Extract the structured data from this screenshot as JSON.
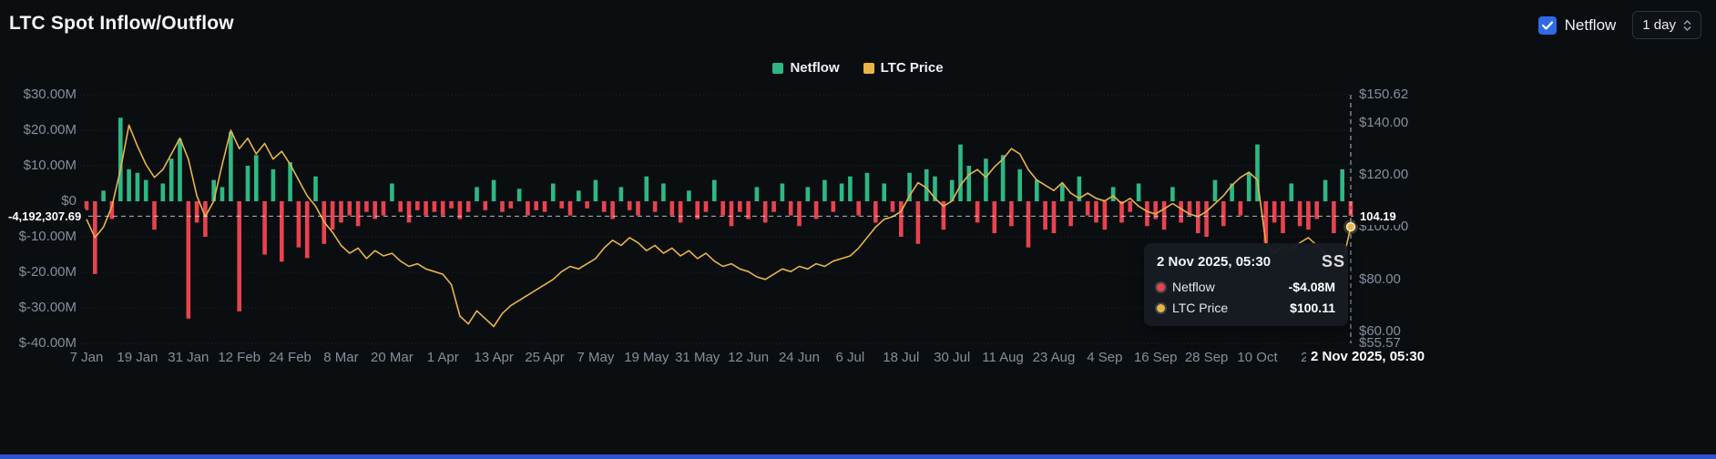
{
  "header": {
    "title": "LTC Spot Inflow/Outflow",
    "controls": {
      "netflow_label": "Netflow",
      "checkbox_checked": true,
      "checkbox_color": "#2f6be4",
      "interval_value": "1 day"
    }
  },
  "legend": {
    "items": [
      {
        "label": "Netflow",
        "color": "#2eb883"
      },
      {
        "label": "LTC Price",
        "color": "#e8b44a"
      }
    ]
  },
  "chart_data": {
    "type": "combo",
    "title": "LTC Spot Inflow/Outflow",
    "grid": "horizontal-dotted",
    "x_ticks": [
      "7 Jan",
      "19 Jan",
      "31 Jan",
      "12 Feb",
      "24 Feb",
      "8 Mar",
      "20 Mar",
      "1 Apr",
      "13 Apr",
      "25 Apr",
      "7 May",
      "19 May",
      "31 May",
      "12 Jun",
      "24 Jun",
      "6 Jul",
      "18 Jul",
      "30 Jul",
      "11 Aug",
      "23 Aug",
      "4 Sep",
      "16 Sep",
      "28 Sep",
      "10 Oct",
      "22"
    ],
    "points_per_tick": 6,
    "y_left": {
      "unit": "$M",
      "range": [
        -40,
        30
      ],
      "tick_labels": [
        "$30.00M",
        "$20.00M",
        "$10.00M",
        "$0",
        "$-10.00M",
        "$-20.00M",
        "$-30.00M",
        "$-40.00M"
      ],
      "tick_values": [
        30,
        20,
        10,
        0,
        -10,
        -20,
        -30,
        -40
      ]
    },
    "y_right": {
      "unit": "$",
      "range": [
        55.57,
        150.62
      ],
      "tick_labels": [
        "$150.62",
        "$140.00",
        "$120.00",
        "$100.00",
        "$80.00",
        "$60.00",
        "$55.57"
      ],
      "tick_values": [
        150.62,
        140,
        120,
        100,
        80,
        60,
        55.57
      ]
    },
    "series": [
      {
        "name": "Netflow",
        "type": "bar",
        "axis": "left",
        "color_positive": "#2eb883",
        "color_negative": "#e8434f",
        "values": [
          -2.5,
          -20.5,
          3,
          -5,
          23.5,
          9,
          8,
          6,
          -8,
          5,
          12,
          17.5,
          -33,
          -6,
          -10,
          6,
          4,
          19.5,
          -31,
          10,
          13,
          -15,
          9,
          -17,
          11,
          -13,
          -16,
          7,
          -12,
          -8,
          -6,
          -4,
          -7,
          -3,
          -5,
          -4,
          5,
          -3,
          -6,
          -2.5,
          -4,
          -3,
          -4,
          -2,
          -5,
          -3,
          4,
          -2.5,
          6,
          -3,
          -2,
          3.5,
          -4,
          -2.5,
          -3,
          5,
          -2,
          -4,
          3,
          -2,
          6,
          -3,
          -5,
          4,
          -2.5,
          -4,
          7,
          -3,
          5,
          -4,
          -6,
          3,
          -5,
          -3,
          6,
          -4,
          -7,
          -3,
          -5,
          4,
          -6,
          -3,
          5,
          -4,
          -7,
          4,
          -5,
          6,
          -3,
          5,
          7,
          -4,
          8,
          -6,
          5,
          -3,
          -10,
          8,
          -12,
          9,
          7,
          -8,
          6,
          16,
          10,
          -6,
          12,
          -9,
          13,
          -7,
          9,
          -13,
          6,
          -8,
          -9,
          5,
          -7,
          7,
          -4,
          -6,
          -8,
          4,
          -6,
          -3,
          5,
          -7,
          -5,
          -8,
          4,
          -6,
          -4,
          -9,
          -10,
          6,
          -7,
          5,
          -4,
          8,
          16,
          -12,
          -6,
          -9,
          5,
          -7,
          -8,
          -5,
          6,
          -9,
          9,
          -4.08
        ]
      },
      {
        "name": "LTC Price",
        "type": "line",
        "axis": "right",
        "color": "#e8b44a",
        "values": [
          103,
          96,
          100,
          108,
          122,
          139,
          131,
          124,
          119,
          122,
          128,
          134,
          126,
          112,
          104,
          110,
          124,
          137,
          130,
          134,
          128,
          132,
          126,
          129,
          124,
          118,
          112,
          108,
          102,
          98,
          93,
          90,
          92,
          88,
          91,
          89,
          90,
          87,
          85,
          86,
          84,
          83,
          82,
          78,
          66,
          63,
          68,
          65,
          62,
          67,
          70,
          72,
          74,
          76,
          78,
          80,
          83,
          85,
          84,
          86,
          88,
          92,
          95,
          93,
          96,
          94,
          91,
          93,
          90,
          92,
          89,
          91,
          88,
          90,
          87,
          85,
          86,
          84,
          83,
          81,
          80,
          82,
          84,
          83,
          85,
          84,
          86,
          85,
          87,
          88,
          89,
          92,
          96,
          100,
          103,
          104,
          106,
          112,
          117,
          115,
          111,
          108,
          110,
          116,
          120,
          122,
          119,
          123,
          126,
          130,
          128,
          122,
          118,
          116,
          114,
          117,
          113,
          111,
          113,
          111,
          110,
          112,
          109,
          111,
          108,
          106,
          105,
          107,
          109,
          107,
          105,
          104,
          106,
          109,
          112,
          116,
          119,
          121,
          118,
          94,
          90,
          93,
          91,
          94,
          96,
          93,
          90,
          88,
          86,
          100.11
        ]
      }
    ]
  },
  "crosshair": {
    "netflow_axis_label": "-4,192,307.69",
    "price_axis_label": "104.19",
    "date_label": "2 Nov 2025, 05:30",
    "netflow_value_m": -4.1923,
    "price_value": 104.19,
    "marker_price": 100.11
  },
  "tooltip": {
    "title": "2 Nov 2025, 05:30",
    "rows": [
      {
        "name": "Netflow",
        "value": "-$4.08M",
        "color": "#e8434f"
      },
      {
        "name": "LTC Price",
        "value": "$100.11",
        "color": "#e8b44a"
      }
    ]
  },
  "watermark_text": "SS"
}
